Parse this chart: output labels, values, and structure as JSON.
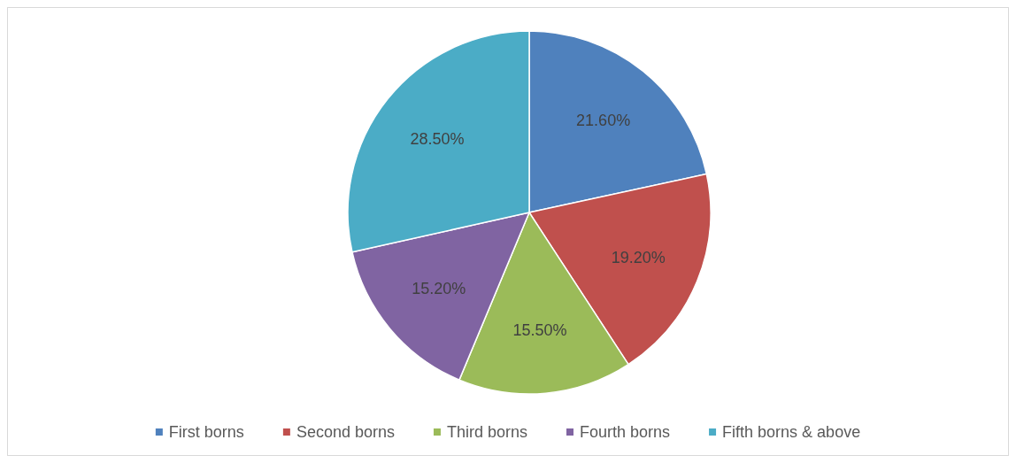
{
  "chart_data": {
    "type": "pie",
    "categories": [
      "First borns",
      "Second borns",
      "Third borns",
      "Fourth borns",
      "Fifth borns & above"
    ],
    "values": [
      21.6,
      19.2,
      15.5,
      15.2,
      28.5
    ],
    "colors": [
      "#4f81bd",
      "#c0504d",
      "#9bbb59",
      "#8064a2",
      "#4bacc6"
    ],
    "value_labels": [
      "21.60%",
      "19.20%",
      "15.50%",
      "15.20%",
      "28.50%"
    ],
    "legend": "bottom"
  }
}
